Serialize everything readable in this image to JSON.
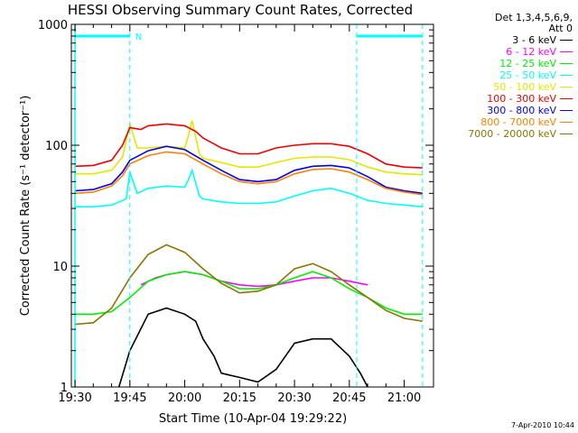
{
  "chart_data": {
    "type": "line",
    "title": "HESSI Observing Summary Count Rates, Corrected",
    "xlabel": "Start Time (10-Apr-04 19:29:22)",
    "ylabel": "Corrected Count Rate (s⁻¹ detector⁻¹)",
    "y_scale": "log",
    "xlim": [
      "19:29",
      "21:08"
    ],
    "ylim": [
      1,
      1000
    ],
    "x_ticks": [
      "19:30",
      "19:45",
      "20:00",
      "20:15",
      "20:30",
      "20:45",
      "21:00"
    ],
    "y_ticks": [
      "1",
      "10",
      "100",
      "1000"
    ],
    "legend_header": [
      "Det 1,3,4,5,6,9,",
      "Att 0"
    ],
    "series": [
      {
        "name": "3 - 6 keV",
        "color": "#000000",
        "x": [
          "19:42",
          "19:45",
          "19:50",
          "19:55",
          "20:00",
          "20:03",
          "20:05",
          "20:08",
          "20:10",
          "20:15",
          "20:20",
          "20:25",
          "20:30",
          "20:35",
          "20:40",
          "20:45",
          "20:48",
          "20:50"
        ],
        "y": [
          1,
          2,
          4,
          4.5,
          4,
          3.5,
          2.5,
          1.8,
          1.3,
          1.2,
          1.1,
          1.4,
          2.3,
          2.5,
          2.5,
          1.8,
          1.3,
          1
        ]
      },
      {
        "name": "6 - 12 keV",
        "color": "#ff00ff",
        "x": [
          "19:48",
          "19:52",
          "19:55",
          "20:00",
          "20:05",
          "20:10",
          "20:15",
          "20:20",
          "20:25",
          "20:30",
          "20:35",
          "20:40",
          "20:45",
          "20:50"
        ],
        "y": [
          7,
          8,
          8.5,
          9,
          8.5,
          7.5,
          7,
          6.8,
          7,
          7.5,
          8,
          8,
          7.5,
          7
        ]
      },
      {
        "name": "12 - 25 keV",
        "color": "#00ee00",
        "x": [
          "19:30",
          "19:35",
          "19:40",
          "19:45",
          "19:50",
          "19:55",
          "20:00",
          "20:05",
          "20:10",
          "20:15",
          "20:20",
          "20:25",
          "20:30",
          "20:35",
          "20:40",
          "20:45",
          "20:50",
          "20:55",
          "21:00",
          "21:05"
        ],
        "y": [
          4,
          4,
          4.2,
          5.5,
          7.5,
          8.5,
          9,
          8.5,
          7.5,
          6.5,
          6.5,
          7,
          8,
          9,
          8,
          6.5,
          5.5,
          4.5,
          4,
          4
        ]
      },
      {
        "name": "25 - 50 keV",
        "color": "#00ffff",
        "x": [
          "19:30",
          "19:35",
          "19:40",
          "19:44",
          "19:45",
          "19:47",
          "19:50",
          "19:55",
          "20:00",
          "20:01",
          "20:02",
          "20:04",
          "20:05",
          "20:10",
          "20:15",
          "20:20",
          "20:25",
          "20:30",
          "20:35",
          "20:40",
          "20:45",
          "20:50",
          "20:55",
          "21:00",
          "21:05"
        ],
        "y": [
          31,
          31,
          32,
          36,
          60,
          40,
          44,
          46,
          45,
          52,
          62,
          38,
          36,
          34,
          33,
          33,
          34,
          38,
          42,
          44,
          40,
          35,
          33,
          32,
          31
        ]
      },
      {
        "name": "50 - 100 keV",
        "color": "#e6e600",
        "x": [
          "19:30",
          "19:35",
          "19:40",
          "19:43",
          "19:45",
          "19:47",
          "19:50",
          "19:55",
          "20:00",
          "20:01",
          "20:02",
          "20:04",
          "20:05",
          "20:10",
          "20:15",
          "20:20",
          "20:25",
          "20:30",
          "20:35",
          "20:40",
          "20:45",
          "20:50",
          "20:55",
          "21:00",
          "21:05"
        ],
        "y": [
          58,
          58,
          62,
          80,
          150,
          95,
          95,
          98,
          95,
          120,
          160,
          85,
          78,
          72,
          66,
          66,
          72,
          78,
          80,
          80,
          76,
          66,
          60,
          58,
          57
        ]
      },
      {
        "name": "100 - 300 keV",
        "color": "#ee0000",
        "x": [
          "19:30",
          "19:35",
          "19:40",
          "19:43",
          "19:45",
          "19:48",
          "19:50",
          "19:55",
          "20:00",
          "20:03",
          "20:05",
          "20:10",
          "20:15",
          "20:20",
          "20:25",
          "20:30",
          "20:35",
          "20:40",
          "20:45",
          "20:50",
          "20:55",
          "21:00",
          "21:05"
        ],
        "y": [
          67,
          68,
          75,
          100,
          140,
          135,
          145,
          150,
          145,
          130,
          115,
          95,
          85,
          85,
          95,
          100,
          103,
          103,
          98,
          85,
          70,
          66,
          65
        ]
      },
      {
        "name": "300 - 800 keV",
        "color": "#0000ee",
        "x": [
          "19:30",
          "19:35",
          "19:40",
          "19:43",
          "19:45",
          "19:50",
          "19:55",
          "20:00",
          "20:05",
          "20:10",
          "20:15",
          "20:20",
          "20:25",
          "20:30",
          "20:35",
          "20:40",
          "20:45",
          "20:50",
          "20:55",
          "21:00",
          "21:05"
        ],
        "y": [
          42,
          43,
          48,
          60,
          75,
          90,
          98,
          92,
          75,
          62,
          52,
          50,
          52,
          62,
          67,
          68,
          65,
          55,
          45,
          42,
          40
        ]
      },
      {
        "name": "800 - 7000 keV",
        "color": "#ff8000",
        "x": [
          "19:30",
          "19:35",
          "19:40",
          "19:43",
          "19:45",
          "19:50",
          "19:55",
          "20:00",
          "20:05",
          "20:10",
          "20:15",
          "20:20",
          "20:25",
          "20:30",
          "20:35",
          "20:40",
          "20:45",
          "20:50",
          "20:55",
          "21:00",
          "21:05"
        ],
        "y": [
          40,
          41,
          46,
          56,
          70,
          82,
          88,
          85,
          70,
          58,
          50,
          48,
          50,
          58,
          63,
          64,
          60,
          52,
          44,
          41,
          39
        ]
      },
      {
        "name": "7000 - 20000 keV",
        "color": "#8b7500",
        "x": [
          "19:30",
          "19:35",
          "19:40",
          "19:45",
          "19:50",
          "19:55",
          "20:00",
          "20:05",
          "20:10",
          "20:15",
          "20:20",
          "20:25",
          "20:30",
          "20:35",
          "20:40",
          "20:45",
          "20:50",
          "20:55",
          "21:00",
          "21:05"
        ],
        "y": [
          3.3,
          3.4,
          4.5,
          8,
          12.5,
          15,
          13,
          9.5,
          7.2,
          6,
          6.2,
          7,
          9.5,
          10.5,
          9,
          7,
          5.5,
          4.3,
          3.7,
          3.5
        ]
      }
    ],
    "annotations": {
      "attenuator_bars": [
        [
          "19:30",
          "19:45"
        ],
        [
          "20:47",
          "21:05"
        ]
      ],
      "attenuator_bar_level": 800,
      "bar_label": "N",
      "vertical_lines": [
        "19:45",
        "20:47",
        "21:05"
      ],
      "edge_line": "19:30"
    },
    "accent_color": "#00ffff"
  },
  "stamp": "7-Apr-2010 10:44"
}
